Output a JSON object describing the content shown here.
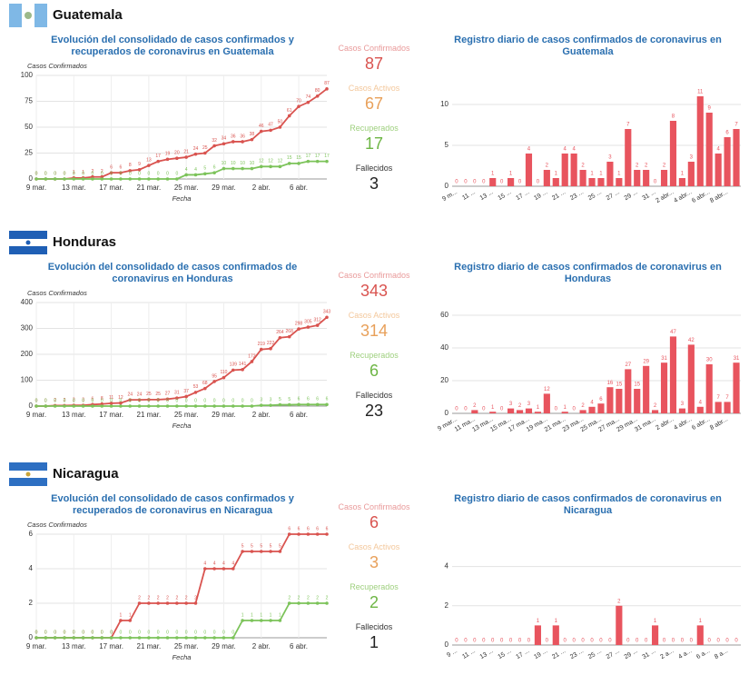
{
  "countries": [
    {
      "name": "Guatemala",
      "kpis": [
        {
          "label": "Casos Confirmados",
          "value": 87
        },
        {
          "label": "Casos Activos",
          "value": 67
        },
        {
          "label": "Recuperados",
          "value": 17
        },
        {
          "label": "Fallecidos",
          "value": 3
        }
      ]
    },
    {
      "name": "Honduras",
      "kpis": [
        {
          "label": "Casos Confirmados",
          "value": 343
        },
        {
          "label": "Casos Activos",
          "value": 314
        },
        {
          "label": "Recuperados",
          "value": 6
        },
        {
          "label": "Fallecidos",
          "value": 23
        }
      ]
    },
    {
      "name": "Nicaragua",
      "kpis": [
        {
          "label": "Casos Confirmados",
          "value": 6
        },
        {
          "label": "Casos Activos",
          "value": 3
        },
        {
          "label": "Recuperados",
          "value": 2
        },
        {
          "label": "Fallecidos",
          "value": 1
        }
      ]
    }
  ],
  "chart_data": [
    {
      "type": "line",
      "title": "Evolución del consolidado de casos confirmados y recuperados de coronavirus en Guatemala",
      "ylabel": "Casos Confirmados",
      "xlabel": "Fecha",
      "categories": [
        "9 mar.",
        null,
        null,
        null,
        "13 mar.",
        null,
        null,
        null,
        "17 mar.",
        null,
        null,
        null,
        "21 mar.",
        null,
        null,
        null,
        "25 mar.",
        null,
        null,
        null,
        "29 mar.",
        null,
        null,
        null,
        "2 abr.",
        null,
        null,
        null,
        "6 abr.",
        null,
        null,
        null
      ],
      "series": [
        {
          "color": "#d9534f",
          "values": [
            0,
            0,
            0,
            0,
            1,
            1,
            2,
            2,
            6,
            6,
            8,
            9,
            13,
            17,
            19,
            20,
            21,
            24,
            25,
            32,
            34,
            36,
            36,
            38,
            46,
            47,
            50,
            61,
            70,
            74,
            80,
            87
          ]
        },
        {
          "color": "#7cc35a",
          "values": [
            0,
            0,
            0,
            0,
            0,
            0,
            0,
            0,
            0,
            0,
            0,
            0,
            0,
            0,
            0,
            0,
            4,
            4,
            5,
            6,
            10,
            10,
            10,
            10,
            12,
            12,
            12,
            15,
            15,
            17,
            17,
            17
          ]
        }
      ],
      "ylim": [
        0,
        100
      ],
      "yticks": [
        0,
        25,
        50,
        75,
        100
      ],
      "grid": true
    },
    {
      "type": "bar",
      "title": "Registro diario de casos confirmados de coronavirus en Guatemala",
      "categories": [
        "9 m...",
        null,
        "11 ...",
        null,
        "13 ...",
        null,
        "15 ...",
        null,
        "17 ...",
        null,
        "19 ...",
        null,
        "21 ...",
        null,
        "23 ...",
        null,
        "25 ...",
        null,
        "27 ...",
        null,
        "29 ...",
        null,
        "31 ...",
        null,
        "2 abr...",
        null,
        "4 abr...",
        null,
        "6 abr...",
        null,
        "8 abr...",
        null
      ],
      "values": [
        0,
        0,
        0,
        0,
        1,
        0,
        1,
        0,
        4,
        0,
        2,
        1,
        4,
        4,
        2,
        1,
        1,
        3,
        1,
        7,
        2,
        2,
        0,
        2,
        8,
        1,
        3,
        11,
        9,
        4,
        6,
        7
      ],
      "color": "#e8545e",
      "ylim": [
        0,
        12
      ],
      "yticks": [
        0,
        5,
        10
      ],
      "grid": true
    },
    {
      "type": "line",
      "title": "Evolución del consolidado de casos confirmados de coronavirus en Honduras",
      "ylabel": "Casos Confirmados",
      "xlabel": "Fecha",
      "categories": [
        "9 mar.",
        null,
        null,
        null,
        "13 mar.",
        null,
        null,
        null,
        "17 mar.",
        null,
        null,
        null,
        "21 mar.",
        null,
        null,
        null,
        "25 mar.",
        null,
        null,
        null,
        "29 mar.",
        null,
        null,
        null,
        "2 abr.",
        null,
        null,
        null,
        "6 abr.",
        null,
        null,
        null
      ],
      "series": [
        {
          "color": "#d9534f",
          "values": [
            0,
            0,
            2,
            2,
            3,
            3,
            6,
            8,
            11,
            12,
            24,
            24,
            25,
            25,
            27,
            31,
            37,
            53,
            68,
            95,
            110,
            139,
            141,
            172,
            219,
            222,
            264,
            268,
            298,
            305,
            312,
            343
          ]
        },
        {
          "color": "#7cc35a",
          "values": [
            0,
            0,
            0,
            0,
            0,
            0,
            0,
            0,
            0,
            0,
            0,
            0,
            0,
            0,
            0,
            0,
            0,
            0,
            0,
            0,
            0,
            0,
            0,
            0,
            3,
            3,
            5,
            5,
            6,
            6,
            6,
            6
          ]
        }
      ],
      "ylim": [
        0,
        400
      ],
      "yticks": [
        0,
        100,
        200,
        300,
        400
      ],
      "grid": true
    },
    {
      "type": "bar",
      "title": "Registro diario de casos confirmados de coronavirus en Honduras",
      "categories": [
        "9 mar...",
        null,
        "11 ma...",
        null,
        "13 ma...",
        null,
        "15 ma...",
        null,
        "17 ma...",
        null,
        "19 ma...",
        null,
        "21 ma...",
        null,
        "23 ma...",
        null,
        "25 ma...",
        null,
        "27 ma...",
        null,
        "29 ma...",
        null,
        "31 ma...",
        null,
        "2 abr...",
        null,
        "4 abr...",
        null,
        "6 abr...",
        null,
        "8 abr...",
        null
      ],
      "values": [
        0,
        0,
        2,
        0,
        1,
        0,
        3,
        2,
        3,
        1,
        12,
        0,
        1,
        0,
        2,
        4,
        6,
        16,
        15,
        27,
        15,
        29,
        2,
        31,
        47,
        3,
        42,
        4,
        30,
        7,
        7,
        31
      ],
      "color": "#e8545e",
      "ylim": [
        0,
        60
      ],
      "yticks": [
        0,
        20,
        40,
        60
      ],
      "grid": true
    },
    {
      "type": "line",
      "title": "Evolución del consolidado de casos confirmados y recuperados de coronavirus en Nicaragua",
      "ylabel": "Casos Confirmados",
      "xlabel": "Fecha",
      "categories": [
        "9 mar.",
        null,
        null,
        null,
        "13 mar.",
        null,
        null,
        null,
        "17 mar.",
        null,
        null,
        null,
        "21 mar.",
        null,
        null,
        null,
        "25 mar.",
        null,
        null,
        null,
        "29 mar.",
        null,
        null,
        null,
        "2 abr.",
        null,
        null,
        null,
        "6 abr.",
        null,
        null,
        null
      ],
      "series": [
        {
          "color": "#d9534f",
          "values": [
            0,
            0,
            0,
            0,
            0,
            0,
            0,
            0,
            0,
            1,
            1,
            2,
            2,
            2,
            2,
            2,
            2,
            2,
            4,
            4,
            4,
            4,
            5,
            5,
            5,
            5,
            5,
            6,
            6,
            6,
            6,
            6
          ]
        },
        {
          "color": "#7cc35a",
          "values": [
            0,
            0,
            0,
            0,
            0,
            0,
            0,
            0,
            0,
            0,
            0,
            0,
            0,
            0,
            0,
            0,
            0,
            0,
            0,
            0,
            0,
            0,
            1,
            1,
            1,
            1,
            1,
            2,
            2,
            2,
            2,
            2
          ]
        }
      ],
      "ylim": [
        0,
        6
      ],
      "yticks": [
        0,
        2,
        4,
        6
      ],
      "grid": true
    },
    {
      "type": "bar",
      "title": "Registro diario de casos confirmados de coronavirus en Nicaragua",
      "categories": [
        "9 ...",
        null,
        "11 ...",
        null,
        "13 ...",
        null,
        "15 ...",
        null,
        "17 ...",
        null,
        "19 ...",
        null,
        "21 ...",
        null,
        "23 ...",
        null,
        "25 ...",
        null,
        "27 ...",
        null,
        "29 ...",
        null,
        "31 ...",
        null,
        "2 a...",
        null,
        "4 a...",
        null,
        "6 a...",
        null,
        "8 a...",
        null
      ],
      "values": [
        0,
        0,
        0,
        0,
        0,
        0,
        0,
        0,
        0,
        1,
        0,
        1,
        0,
        0,
        0,
        0,
        0,
        0,
        2,
        0,
        0,
        0,
        1,
        0,
        0,
        0,
        0,
        1,
        0,
        0,
        0,
        0
      ],
      "color": "#e8545e",
      "ylim": [
        0,
        5
      ],
      "yticks": [
        0,
        2,
        4
      ],
      "grid": true
    }
  ]
}
